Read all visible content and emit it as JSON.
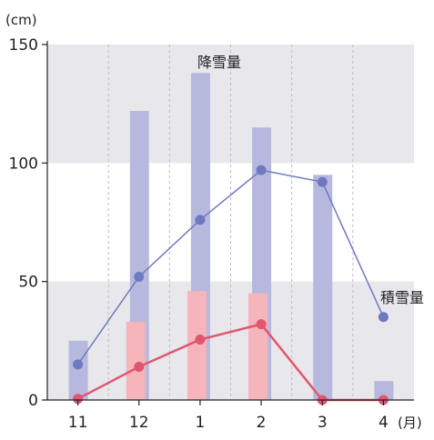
{
  "chart_data": {
    "type": "bar",
    "categories": [
      "11",
      "12",
      "1",
      "2",
      "3",
      "4"
    ],
    "series": [
      {
        "name": "降雪量",
        "type": "bar",
        "values": [
          25,
          122,
          138,
          115,
          95,
          8
        ],
        "color": "#b6b9dd"
      },
      {
        "name": "積雪量",
        "type": "bar",
        "values": [
          0,
          33,
          46,
          45,
          0,
          0
        ],
        "color": "#f6b4bb"
      },
      {
        "name": "降雪量",
        "type": "line",
        "values": [
          15,
          52,
          76,
          97,
          92,
          35
        ],
        "color": "#6f79c0"
      },
      {
        "name": "積雪量",
        "type": "line",
        "values": [
          0.5,
          14,
          25.5,
          32,
          0,
          0
        ],
        "color": "#e0566f"
      }
    ],
    "ylim": [
      0,
      150
    ],
    "yticks": [
      0,
      50,
      100,
      150
    ],
    "yunit": "(cm)",
    "xunit": "(月)",
    "annotations": [
      "降雪量",
      "積雪量"
    ],
    "bands": [
      [
        0,
        50
      ],
      [
        100,
        150
      ]
    ],
    "band_color": "#e8e8ec",
    "grid": "vertical-dashed"
  }
}
